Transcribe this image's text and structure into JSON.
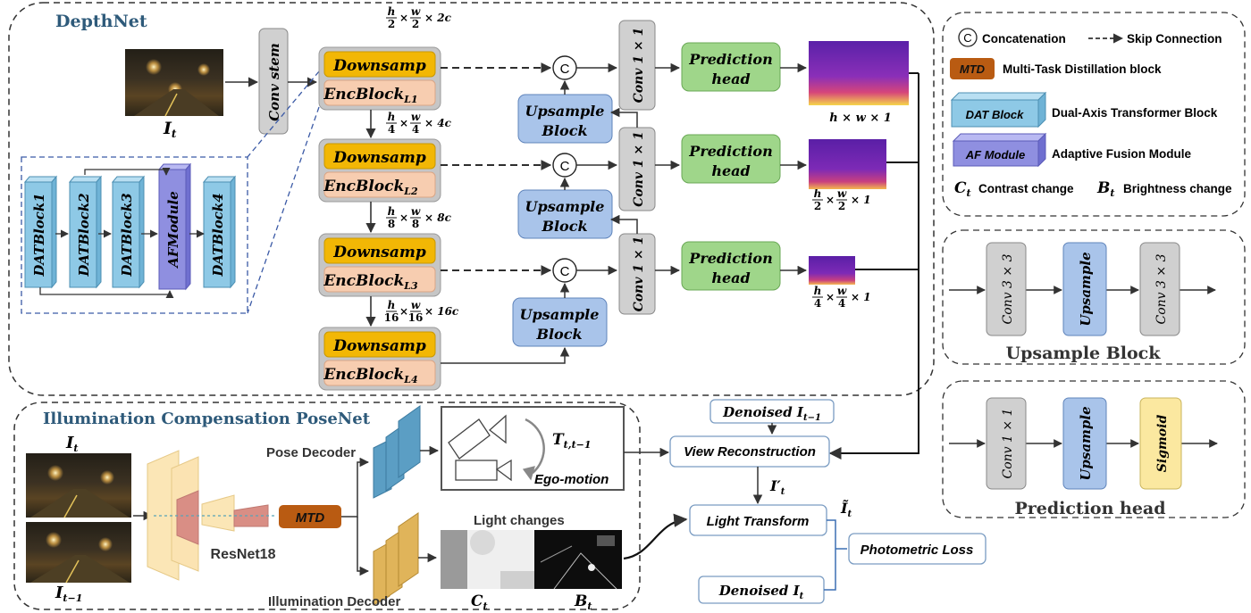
{
  "depthnet": {
    "title": "DepthNet",
    "input_symbol": "I",
    "input_sub": "t",
    "conv_stem": "Conv stem",
    "encoder": [
      {
        "down": "Downsamp",
        "enc": "EncBlock",
        "sub": "L1",
        "shape_h": "h",
        "shape_hd": "2",
        "shape_w": "w",
        "shape_wd": "2",
        "shape_c": "× 2c"
      },
      {
        "down": "Downsamp",
        "enc": "EncBlock",
        "sub": "L2",
        "shape_h": "h",
        "shape_hd": "4",
        "shape_w": "w",
        "shape_wd": "4",
        "shape_c": "× 4c"
      },
      {
        "down": "Downsamp",
        "enc": "EncBlock",
        "sub": "L3",
        "shape_h": "h",
        "shape_hd": "8",
        "shape_w": "w",
        "shape_wd": "8",
        "shape_c": "× 8c"
      },
      {
        "down": "Downsamp",
        "enc": "EncBlock",
        "sub": "L4",
        "shape_h": "h",
        "shape_hd": "16",
        "shape_w": "w",
        "shape_wd": "16",
        "shape_c": "× 16c"
      }
    ],
    "detail_blocks": [
      "DATBlock1",
      "DATBlock2",
      "DATBlock3",
      "AFModule",
      "DATBlock4"
    ],
    "concat_symbol": "C",
    "conv_label": "Conv 1 × 1",
    "upsample_label_1": "Upsample",
    "upsample_label_2": "Block",
    "prediction_label_1": "Prediction",
    "prediction_label_2": "head",
    "output_shapes": [
      {
        "full": "h × w × 1"
      },
      {
        "h": "h",
        "hd": "2",
        "w": "w",
        "wd": "2",
        "rest": "× 1"
      },
      {
        "h": "h",
        "hd": "4",
        "w": "w",
        "wd": "4",
        "rest": "× 1"
      }
    ]
  },
  "legend": {
    "concat_symbol": "C",
    "concat_label": "Concatenation",
    "skip_label": "Skip Connection",
    "mtd_box": "MTD",
    "mtd_label": "Multi-Task Distillation block",
    "dat_box": "DAT Block",
    "dat_label": "Dual-Axis Transformer Block",
    "af_box": "AF Module",
    "af_label": "Adaptive Fusion Module",
    "ct_symbol": "C",
    "ct_sub": "t",
    "ct_label": "Contrast change",
    "bt_symbol": "B",
    "bt_sub": "t",
    "bt_label": "Brightness change"
  },
  "upsample_block_panel": {
    "title": "Upsample Block",
    "blocks": [
      "Conv 3 × 3",
      "Upsample",
      "Conv 3 × 3"
    ]
  },
  "prediction_head_panel": {
    "title": "Prediction head",
    "blocks": [
      "Conv 1 × 1",
      "Upsample",
      "Sigmoid"
    ]
  },
  "posenet": {
    "title": "Illumination Compensation PoseNet",
    "frame_top_symbol": "I",
    "frame_top_sub": "t",
    "frame_bottom_symbol": "I",
    "frame_bottom_sub": "t−1",
    "backbone": "ResNet18",
    "mtd": "MTD",
    "pose_decoder": "Pose Decoder",
    "illumination_decoder": "Illumination Decoder",
    "transform_symbol": "T",
    "transform_sub": "t,t−1",
    "ego_motion": "Ego-motion",
    "light_changes": "Light changes",
    "ct_symbol": "C",
    "ct_sub": "t",
    "bt_symbol": "B",
    "bt_sub": "t"
  },
  "reconstruction": {
    "denoised_prev": "Denoised I",
    "denoised_prev_sub": "t−1",
    "view_reconstruction": "View Reconstruction",
    "warped_symbol": "I′",
    "warped_sub": "t",
    "light_transform": "Light Transform",
    "compensated_symbol": "Ĩ",
    "compensated_sub": "t",
    "photometric_loss": "Photometric Loss",
    "denoised_cur": "Denoised I",
    "denoised_cur_sub": "t"
  },
  "colors": {
    "downsamp": "#f2b705",
    "encblock": "#f7cdb0",
    "upsample": "#a9c4ea",
    "prediction": "#9fd68a",
    "conv": "#d0d0d0",
    "dat": "#8ec9e6",
    "af": "#8f8fe0",
    "mtd": "#b95b12",
    "sigmoid": "#fbe8a0",
    "title": "#2e5a7a"
  }
}
